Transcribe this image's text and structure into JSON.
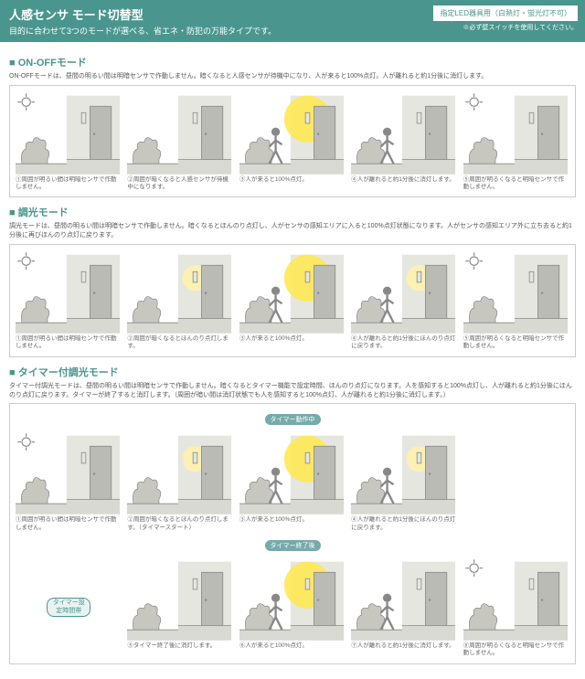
{
  "header": {
    "title": "人感センサ モード切替型",
    "subtitle": "目的に合わせて3つのモードが選べる、省エネ・防犯の万能タイプです。",
    "badge": "指定LED器具用（白熱灯・蛍光灯不可）",
    "badge_note": "※必ず壁スイッチを使用してください。",
    "bg": "#4a968e",
    "fg": "#ffffff"
  },
  "colors": {
    "teal": "#4a968e",
    "glow": "#ffe84a",
    "glow_dim": "#fff4a8",
    "wall": "#e6e6e0",
    "ground": "#d9d9d3",
    "door": "#bbbbb5",
    "bush": "#c7c7c0",
    "line": "#888888",
    "person": "#888888"
  },
  "svg": {
    "w": 100,
    "h": 78
  },
  "modes": [
    {
      "title": "ON-OFFモード",
      "desc": "ON-OFFモードは、昼間の明るい間は明暗センサで作動しません。暗くなると人感センサが待機中になり、人が来ると100%点灯。人が離れると約1分後に消灯します。",
      "rows": [
        {
          "panels": [
            {
              "day": true,
              "person": false,
              "light": "off",
              "caption": "①周囲が明るい間は明暗センサで作動しません。"
            },
            {
              "day": false,
              "person": false,
              "light": "off",
              "caption": "②周囲が暗くなると人感センサが待機中になります。"
            },
            {
              "day": false,
              "person": true,
              "light": "full",
              "caption": "③人が来ると100%点灯。"
            },
            {
              "day": false,
              "person": true,
              "light": "off",
              "caption": "④人が離れると約1分後に消灯します。"
            },
            {
              "day": true,
              "person": false,
              "light": "off",
              "caption": "⑤周囲が明るくなると明暗センサで作動しません。"
            }
          ]
        }
      ]
    },
    {
      "title": "調光モード",
      "desc": "調光モードは、昼間の明るい間は明暗センサで作動しません。暗くなるとほんのり点灯し、人がセンサの感知エリアに入ると100%点灯状態になります。人がセンサの感知エリア外に立ち去ると約1分後に再びほんのり点灯に戻ります。",
      "rows": [
        {
          "panels": [
            {
              "day": true,
              "person": false,
              "light": "off",
              "caption": "①周囲が明るい間は明暗センサで作動しません。"
            },
            {
              "day": false,
              "person": false,
              "light": "dim",
              "caption": "②周囲が暗くなるとほんのり点灯します。"
            },
            {
              "day": false,
              "person": true,
              "light": "full",
              "caption": "③人が来ると100%点灯。"
            },
            {
              "day": false,
              "person": true,
              "light": "dim",
              "caption": "④人が離れると約1分後にほんのり点灯に戻ります。"
            },
            {
              "day": true,
              "person": false,
              "light": "off",
              "caption": "⑤周囲が明るくなると明暗センサで作動しません。"
            }
          ]
        }
      ]
    },
    {
      "title": "タイマー付調光モード",
      "desc": "タイマー付調光モードは、昼間の明るい間は明暗センサで作動しません。暗くなるとタイマー機能で設定時間、ほんのり点灯になります。人を感知すると100%点灯し、人が離れると約1分後にほんのり点灯に戻ります。タイマーが終了すると消灯します。（周囲が暗い間は消灯状態でも人を感知すると100%点灯、人が離れると約1分後に消灯します。）",
      "timer_operating_label": "タイマー動作中",
      "timer_end_label": "タイマー終了後",
      "timer_pill": "タイマー設定時間帯",
      "rows": [
        {
          "label": "タイマー動作中",
          "panels": [
            {
              "day": true,
              "person": false,
              "light": "off",
              "caption": "①周囲が明るい間は明暗センサで作動しません。",
              "outside": true
            },
            {
              "day": false,
              "person": false,
              "light": "dim",
              "caption": "②周囲が暗くなるとほんのり点灯します。（タイマースタート）"
            },
            {
              "day": false,
              "person": true,
              "light": "full",
              "caption": "③人が来ると100%点灯。"
            },
            {
              "day": false,
              "person": true,
              "light": "dim",
              "caption": "④人が離れると約1分後にほんのり点灯に戻ります。"
            },
            {
              "empty": true
            }
          ]
        },
        {
          "label": "タイマー終了後",
          "panels": [
            {
              "empty": true,
              "pill": true
            },
            {
              "day": false,
              "person": false,
              "light": "off",
              "caption": "⑤タイマー終了後に消灯します。"
            },
            {
              "day": false,
              "person": true,
              "light": "full",
              "caption": "⑥人が来ると100%点灯。"
            },
            {
              "day": false,
              "person": true,
              "light": "off",
              "caption": "⑦人が離れると約1分後に消灯します。"
            },
            {
              "day": true,
              "person": false,
              "light": "off",
              "caption": "⑧周囲が明るくなると明暗センサで作動しません。",
              "outside": true
            }
          ]
        }
      ]
    }
  ]
}
